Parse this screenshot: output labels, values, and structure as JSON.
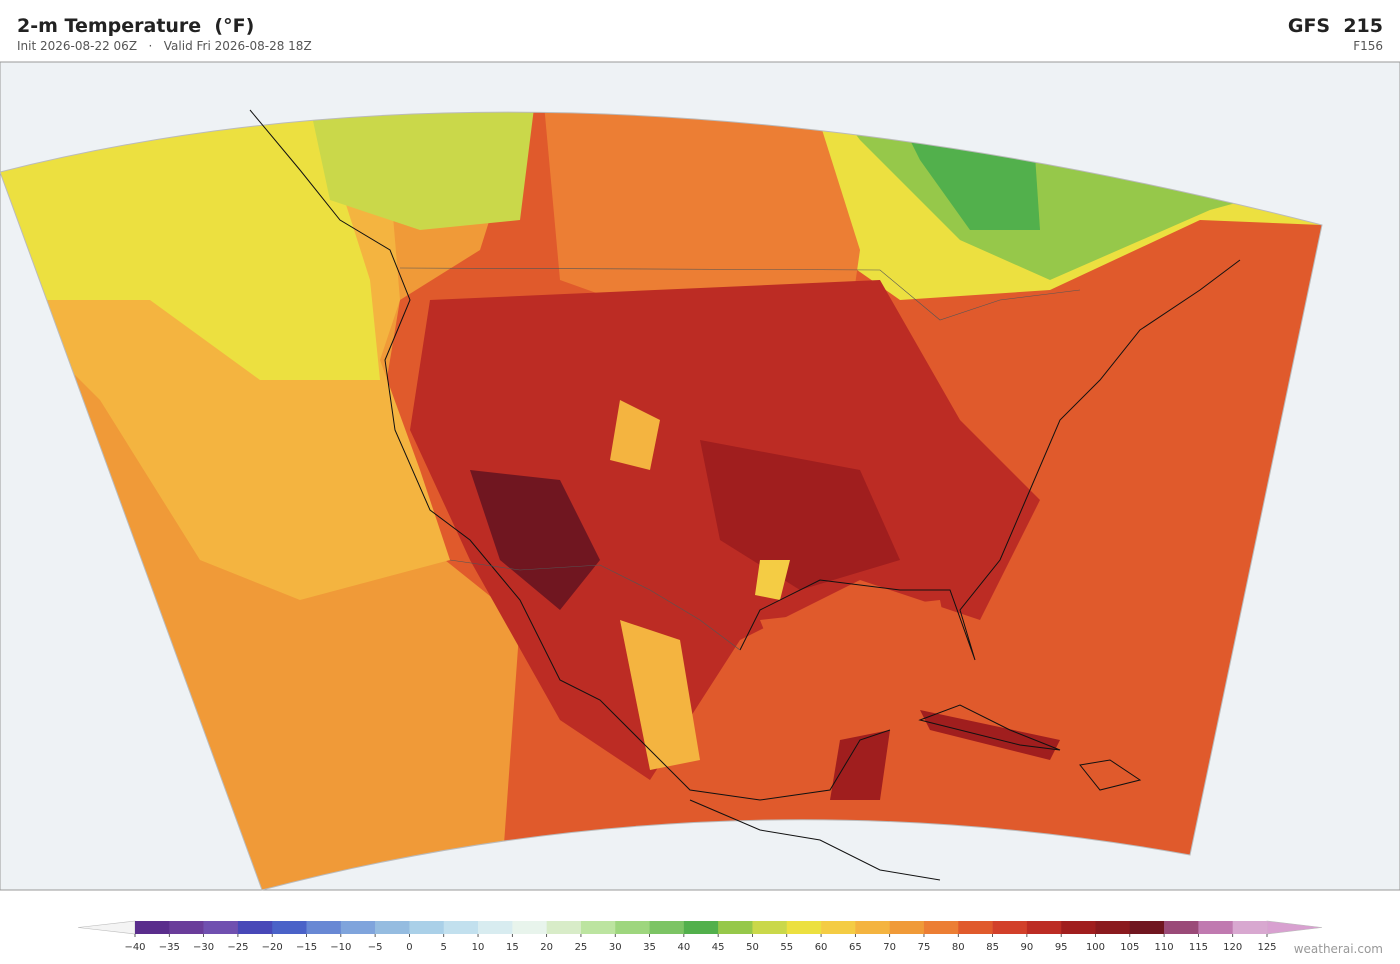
{
  "header": {
    "title": "2-m Temperature  (°F)",
    "init": "Init 2026-08-22 06Z",
    "separator": "·",
    "valid": "Valid Fri 2026-08-28 18Z",
    "model": "GFS  215",
    "forecast_hour": "F156"
  },
  "colorbar": {
    "ticks": [
      {
        "value": -40,
        "label": "−40"
      },
      {
        "value": -35,
        "label": "−35"
      },
      {
        "value": -30,
        "label": "−30"
      },
      {
        "value": -25,
        "label": "−25"
      },
      {
        "value": -20,
        "label": "−20"
      },
      {
        "value": -15,
        "label": "−15"
      },
      {
        "value": -10,
        "label": "−10"
      },
      {
        "value": -5,
        "label": "−5"
      },
      0,
      5,
      10,
      15,
      20,
      25,
      30,
      35,
      40,
      45,
      50,
      55,
      60,
      65,
      70,
      75,
      80,
      85,
      90,
      95,
      100,
      105,
      110,
      115,
      120,
      125
    ],
    "colors": [
      "#5a2d8c",
      "#6a3d9a",
      "#7050b0",
      "#4848b8",
      "#4a62c8",
      "#6888d4",
      "#7fa4dc",
      "#95bce0",
      "#aad0e8",
      "#c2e0ee",
      "#d8ecf0",
      "#e8f4ec",
      "#d8ecc8",
      "#bce4a0",
      "#9ed67e",
      "#7cc464",
      "#52b04c",
      "#96c84a",
      "#cad84a",
      "#ece040",
      "#f4cc44",
      "#f4b440",
      "#f09a38",
      "#ec7e34",
      "#e05a2c",
      "#d2402a",
      "#bc2c24",
      "#a01e1e",
      "#8a1a1e",
      "#701620",
      "#9a4a78",
      "#c07ab0",
      "#d8a8d0"
    ],
    "under_color": "#f4f4f4",
    "over_color": "#d8a0d0"
  },
  "footer": {
    "credit": "weatherai.com"
  }
}
